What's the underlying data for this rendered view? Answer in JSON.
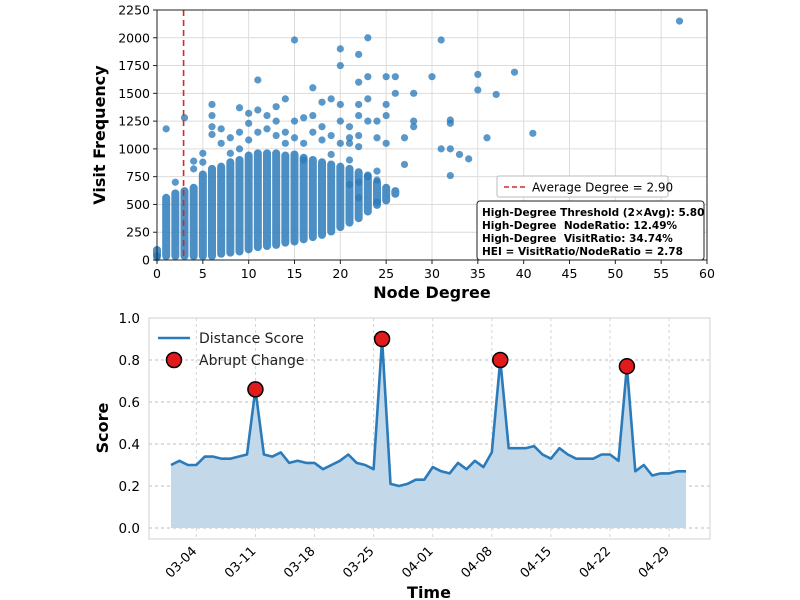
{
  "chart_data": [
    {
      "type": "scatter",
      "xlabel": "Node Degree",
      "ylabel": "Visit Frequency",
      "xlim": [
        0,
        60
      ],
      "ylim": [
        0,
        2250
      ],
      "xticks": [
        0,
        5,
        10,
        15,
        20,
        25,
        30,
        35,
        40,
        45,
        50,
        55,
        60
      ],
      "yticks": [
        0,
        250,
        500,
        750,
        1000,
        1250,
        1500,
        1750,
        2000,
        2250
      ],
      "grid": true,
      "color": "#2b7bba",
      "reference_line": {
        "x": 2.9,
        "label": "Average Degree = 2.90",
        "color": "#d62728",
        "style": "dashed"
      },
      "legend_position": "right",
      "stats_box": [
        "High-Degree Threshold (2×Avg): 5.80",
        "High-Degree  NodeRatio: 12.49%",
        "High-Degree  VisitRatio: 34.74%",
        "HEI = VisitRatio/NodeRatio = 2.78"
      ],
      "points": [
        [
          57,
          2150
        ],
        [
          41,
          1140
        ],
        [
          39,
          1690
        ],
        [
          37,
          1490
        ],
        [
          35,
          1670
        ],
        [
          35,
          1530
        ],
        [
          36,
          1100
        ],
        [
          33,
          950
        ],
        [
          34,
          910
        ],
        [
          32,
          1260
        ],
        [
          32,
          1230
        ],
        [
          32,
          1000
        ],
        [
          32,
          760
        ],
        [
          31,
          1000
        ],
        [
          31,
          1980
        ],
        [
          30,
          1650
        ],
        [
          28,
          1500
        ],
        [
          28,
          1250
        ],
        [
          28,
          1200
        ],
        [
          27,
          1100
        ],
        [
          27,
          860
        ],
        [
          26,
          1650
        ],
        [
          26,
          1500
        ],
        [
          25,
          1650
        ],
        [
          25,
          1400
        ],
        [
          25,
          1300
        ],
        [
          25,
          1050
        ],
        [
          24,
          1100
        ],
        [
          24,
          1250
        ],
        [
          24,
          800
        ],
        [
          24,
          720
        ],
        [
          24,
          520
        ],
        [
          23,
          1650
        ],
        [
          23,
          2000
        ],
        [
          23,
          1450
        ],
        [
          23,
          1250
        ],
        [
          23,
          750
        ],
        [
          22,
          1850
        ],
        [
          22,
          1600
        ],
        [
          22,
          1400
        ],
        [
          22,
          1300
        ],
        [
          22,
          1120
        ],
        [
          22,
          1020
        ],
        [
          22,
          700
        ],
        [
          22,
          560
        ],
        [
          21,
          1200
        ],
        [
          21,
          1100
        ],
        [
          21,
          1050
        ],
        [
          21,
          900
        ],
        [
          21,
          680
        ],
        [
          20,
          1750
        ],
        [
          20,
          1900
        ],
        [
          20,
          1400
        ],
        [
          20,
          1250
        ],
        [
          20,
          1050
        ],
        [
          19,
          1450
        ],
        [
          19,
          1120
        ],
        [
          19,
          950
        ],
        [
          18,
          1420
        ],
        [
          18,
          1200
        ],
        [
          18,
          1080
        ],
        [
          17,
          1550
        ],
        [
          17,
          1300
        ],
        [
          17,
          1150
        ],
        [
          16,
          1280
        ],
        [
          16,
          1050
        ],
        [
          16,
          900
        ],
        [
          15,
          1980
        ],
        [
          15,
          1250
        ],
        [
          15,
          1100
        ],
        [
          14,
          1450
        ],
        [
          14,
          1150
        ],
        [
          14,
          1050
        ],
        [
          13,
          1380
        ],
        [
          13,
          1250
        ],
        [
          13,
          1120
        ],
        [
          12,
          1300
        ],
        [
          12,
          1180
        ],
        [
          11,
          1620
        ],
        [
          11,
          1350
        ],
        [
          11,
          1150
        ],
        [
          10,
          1320
        ],
        [
          10,
          1230
        ],
        [
          10,
          1080
        ],
        [
          9,
          1370
        ],
        [
          9,
          1150
        ],
        [
          9,
          1000
        ],
        [
          8,
          1100
        ],
        [
          8,
          960
        ],
        [
          7,
          1180
        ],
        [
          7,
          1050
        ],
        [
          6,
          1400
        ],
        [
          6,
          1300
        ],
        [
          6,
          1200
        ],
        [
          6,
          1130
        ],
        [
          5,
          960
        ],
        [
          5,
          880
        ],
        [
          4,
          890
        ],
        [
          4,
          820
        ],
        [
          3,
          1280
        ],
        [
          2,
          700
        ],
        [
          1,
          1180
        ],
        [
          0,
          20
        ],
        [
          0,
          40
        ]
      ],
      "bands": [
        [
          0,
          0,
          90
        ],
        [
          1,
          0,
          560
        ],
        [
          2,
          0,
          600
        ],
        [
          3,
          0,
          620
        ],
        [
          4,
          0,
          650
        ],
        [
          5,
          0,
          770
        ],
        [
          6,
          0,
          820
        ],
        [
          7,
          20,
          840
        ],
        [
          8,
          30,
          880
        ],
        [
          9,
          40,
          900
        ],
        [
          10,
          60,
          940
        ],
        [
          11,
          80,
          960
        ],
        [
          12,
          90,
          960
        ],
        [
          13,
          100,
          960
        ],
        [
          14,
          120,
          940
        ],
        [
          15,
          130,
          950
        ],
        [
          16,
          150,
          920
        ],
        [
          17,
          170,
          900
        ],
        [
          18,
          190,
          880
        ],
        [
          19,
          220,
          860
        ],
        [
          20,
          260,
          840
        ],
        [
          21,
          300,
          820
        ],
        [
          22,
          340,
          790
        ],
        [
          23,
          400,
          760
        ],
        [
          24,
          460,
          700
        ],
        [
          25,
          500,
          650
        ],
        [
          26,
          560,
          620
        ]
      ]
    },
    {
      "type": "line",
      "xlabel": "Time",
      "ylabel": "Score",
      "ylim": [
        0.0,
        1.0
      ],
      "yticks": [
        0.0,
        0.2,
        0.4,
        0.6,
        0.8,
        1.0
      ],
      "xtick_labels": [
        "03-04",
        "03-11",
        "03-18",
        "03-25",
        "04-01",
        "04-08",
        "04-15",
        "04-22",
        "04-29"
      ],
      "grid": true,
      "legend_position": "top-left",
      "series": [
        {
          "name": "Distance Score",
          "color": "#2b7bba",
          "fill": "#c3d9ea",
          "x": [
            "03-01",
            "03-02",
            "03-03",
            "03-04",
            "03-05",
            "03-06",
            "03-07",
            "03-08",
            "03-09",
            "03-10",
            "03-11",
            "03-12",
            "03-13",
            "03-14",
            "03-15",
            "03-16",
            "03-17",
            "03-18",
            "03-19",
            "03-20",
            "03-21",
            "03-22",
            "03-23",
            "03-24",
            "03-25",
            "03-26",
            "03-27",
            "03-28",
            "03-29",
            "03-30",
            "03-31",
            "04-01",
            "04-02",
            "04-03",
            "04-04",
            "04-05",
            "04-06",
            "04-07",
            "04-08",
            "04-09",
            "04-10",
            "04-11",
            "04-12",
            "04-13",
            "04-14",
            "04-15",
            "04-16",
            "04-17",
            "04-18",
            "04-19",
            "04-20",
            "04-21",
            "04-22",
            "04-23",
            "04-24",
            "04-25",
            "04-26",
            "04-27",
            "04-28",
            "04-29",
            "04-30",
            "05-01"
          ],
          "values": [
            0.3,
            0.32,
            0.3,
            0.3,
            0.34,
            0.34,
            0.33,
            0.33,
            0.34,
            0.35,
            0.66,
            0.35,
            0.34,
            0.36,
            0.31,
            0.32,
            0.31,
            0.31,
            0.28,
            0.3,
            0.32,
            0.35,
            0.31,
            0.3,
            0.28,
            0.9,
            0.21,
            0.2,
            0.21,
            0.23,
            0.23,
            0.29,
            0.27,
            0.26,
            0.31,
            0.28,
            0.32,
            0.29,
            0.36,
            0.8,
            0.38,
            0.38,
            0.38,
            0.39,
            0.35,
            0.33,
            0.38,
            0.35,
            0.33,
            0.33,
            0.33,
            0.35,
            0.35,
            0.32,
            0.77,
            0.27,
            0.3,
            0.25,
            0.26,
            0.26,
            0.27,
            0.27
          ]
        },
        {
          "name": "Abrupt Change",
          "type": "scatter",
          "color": "#e31a1c",
          "x": [
            "03-11",
            "03-26",
            "04-09",
            "04-24"
          ],
          "values": [
            0.66,
            0.9,
            0.8,
            0.77
          ]
        }
      ]
    }
  ]
}
